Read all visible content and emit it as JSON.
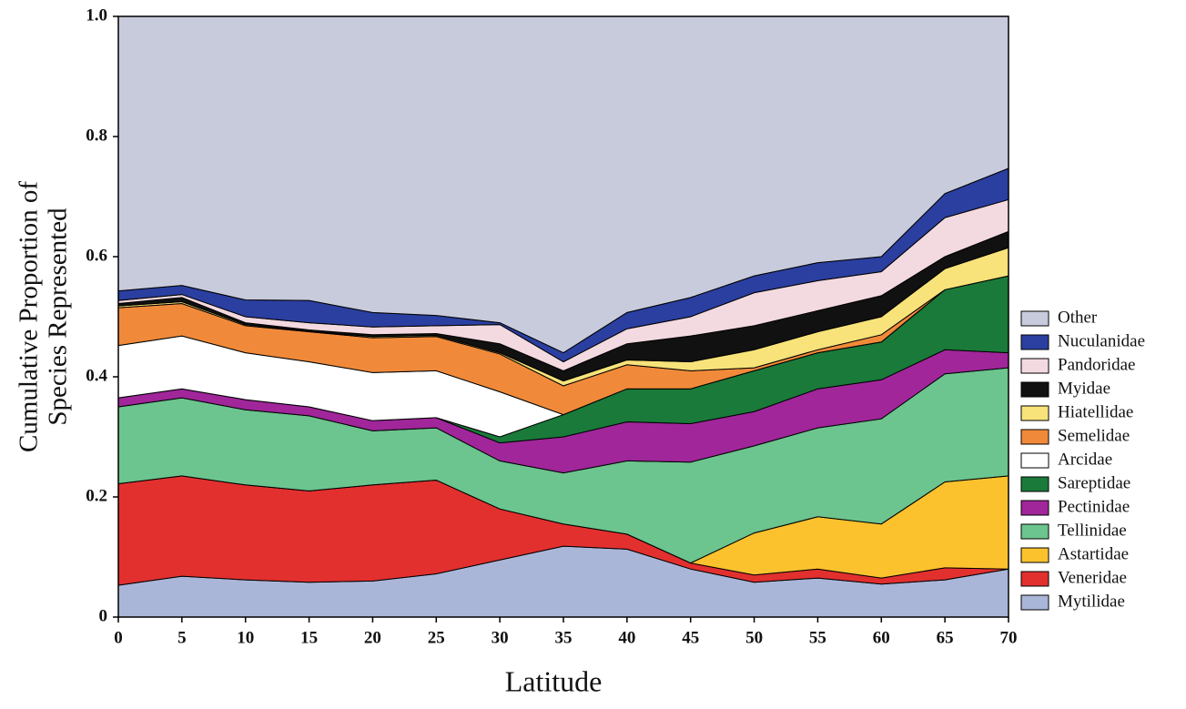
{
  "chart_data": {
    "type": "stacked_area",
    "xlabel": "Latitude",
    "ylabel": [
      "Cumulative Proportion of",
      "Species Represented"
    ],
    "x": [
      0,
      5,
      10,
      15,
      20,
      25,
      30,
      35,
      40,
      45,
      50,
      55,
      60,
      65,
      70
    ],
    "xlim": [
      0,
      70
    ],
    "xticks": [
      0,
      5,
      10,
      15,
      20,
      25,
      30,
      35,
      40,
      45,
      50,
      55,
      60,
      65,
      70
    ],
    "ylim": [
      0,
      1
    ],
    "yticks": [
      0,
      0.2,
      0.4,
      0.6,
      0.8,
      {
        "value": 1,
        "label": "1.0"
      }
    ],
    "series": [
      {
        "name": "Mytilidae",
        "color": "#aab6d8",
        "values": [
          0.053,
          0.068,
          0.062,
          0.058,
          0.06,
          0.072,
          0.095,
          0.118,
          0.113,
          0.08,
          0.058,
          0.065,
          0.055,
          0.062,
          0.08
        ]
      },
      {
        "name": "Veneridae",
        "color": "#e2302f",
        "values": [
          0.169,
          0.167,
          0.158,
          0.152,
          0.16,
          0.156,
          0.085,
          0.037,
          0.025,
          0.01,
          0.012,
          0.015,
          0.01,
          0.02,
          0
        ]
      },
      {
        "name": "Astartidae",
        "color": "#fcc22e",
        "values": [
          0,
          0,
          0,
          0,
          0,
          0,
          0,
          0,
          0,
          0,
          0.07,
          0.087,
          0.09,
          0.143,
          0.155
        ]
      },
      {
        "name": "Tellinidae",
        "color": "#6cc48e",
        "values": [
          0.128,
          0.13,
          0.125,
          0.125,
          0.09,
          0.087,
          0.08,
          0.085,
          0.122,
          0.168,
          0.145,
          0.148,
          0.175,
          0.18,
          0.18
        ]
      },
      {
        "name": "Pectinidae",
        "color": "#a0269a",
        "values": [
          0.015,
          0.015,
          0.017,
          0.015,
          0.017,
          0.017,
          0.03,
          0.06,
          0.065,
          0.064,
          0.057,
          0.065,
          0.065,
          0.04,
          0.025
        ]
      },
      {
        "name": "Sareptidae",
        "color": "#1a7a3a",
        "values": [
          0,
          0,
          0,
          0,
          0,
          0,
          0.01,
          0.037,
          0.055,
          0.058,
          0.068,
          0.06,
          0.063,
          0.1,
          0.128
        ]
      },
      {
        "name": "Arcidae",
        "color": "#ffffff",
        "values": [
          0.087,
          0.088,
          0.078,
          0.075,
          0.08,
          0.078,
          0.075,
          0,
          0,
          0,
          0,
          0,
          0,
          0,
          0
        ]
      },
      {
        "name": "Semelidae",
        "color": "#f08a3a",
        "values": [
          0.063,
          0.054,
          0.045,
          0.05,
          0.058,
          0.057,
          0.063,
          0.048,
          0.04,
          0.03,
          0.005,
          0.005,
          0.012,
          0,
          0
        ]
      },
      {
        "name": "Hiatellidae",
        "color": "#f8e37a",
        "values": [
          0.003,
          0.003,
          0.002,
          0.001,
          0.002,
          0.002,
          0.002,
          0.008,
          0.008,
          0.015,
          0.03,
          0.03,
          0.03,
          0.035,
          0.047
        ]
      },
      {
        "name": "Myidae",
        "color": "#111111",
        "values": [
          0.004,
          0.007,
          0.003,
          0.002,
          0.003,
          0.003,
          0.015,
          0.017,
          0.027,
          0.043,
          0.04,
          0.035,
          0.035,
          0.02,
          0.027
        ]
      },
      {
        "name": "Pandoridae",
        "color": "#f3d9e0",
        "values": [
          0.005,
          0.005,
          0.01,
          0.012,
          0.013,
          0.013,
          0.032,
          0.015,
          0.025,
          0.032,
          0.055,
          0.05,
          0.04,
          0.065,
          0.053
        ]
      },
      {
        "name": "Nuculanidae",
        "color": "#2b3fa0",
        "values": [
          0.016,
          0.015,
          0.028,
          0.037,
          0.024,
          0.017,
          0.003,
          0.015,
          0.027,
          0.032,
          0.028,
          0.03,
          0.025,
          0.04,
          0.052
        ]
      },
      {
        "name": "Other",
        "color": "#c8cbdc",
        "values": [
          0.457,
          0.448,
          0.472,
          0.473,
          0.493,
          0.498,
          0.51,
          0.56,
          0.493,
          0.468,
          0.432,
          0.41,
          0.4,
          0.295,
          0.253
        ]
      }
    ]
  }
}
